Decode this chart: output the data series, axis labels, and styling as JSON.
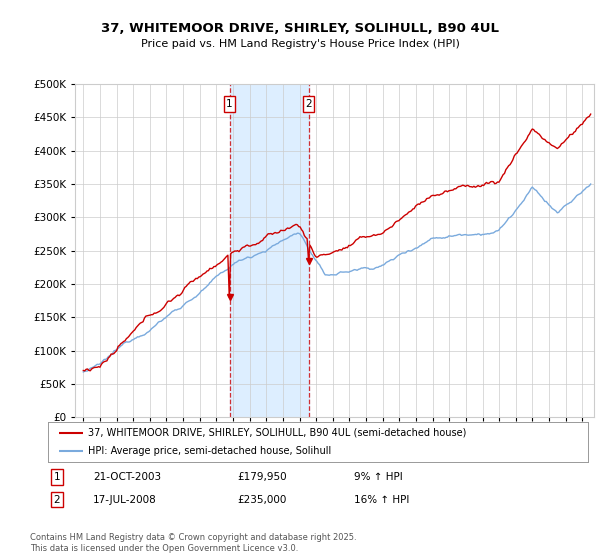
{
  "title_line1": "37, WHITEMOOR DRIVE, SHIRLEY, SOLIHULL, B90 4UL",
  "title_line2": "Price paid vs. HM Land Registry's House Price Index (HPI)",
  "legend_line1": "37, WHITEMOOR DRIVE, SHIRLEY, SOLIHULL, B90 4UL (semi-detached house)",
  "legend_line2": "HPI: Average price, semi-detached house, Solihull",
  "purchase1_date": "21-OCT-2003",
  "purchase1_price": 179950,
  "purchase1_hpi": "9% ↑ HPI",
  "purchase2_date": "17-JUL-2008",
  "purchase2_price": 235000,
  "purchase2_hpi": "16% ↑ HPI",
  "footnote": "Contains HM Land Registry data © Crown copyright and database right 2025.\nThis data is licensed under the Open Government Licence v3.0.",
  "color_property": "#cc0000",
  "color_hpi": "#7aaadd",
  "color_highlight": "#ddeeff",
  "color_vline": "#cc0000",
  "ylim_min": 0,
  "ylim_max": 500000,
  "background_color": "#ffffff",
  "grid_color": "#cccccc"
}
